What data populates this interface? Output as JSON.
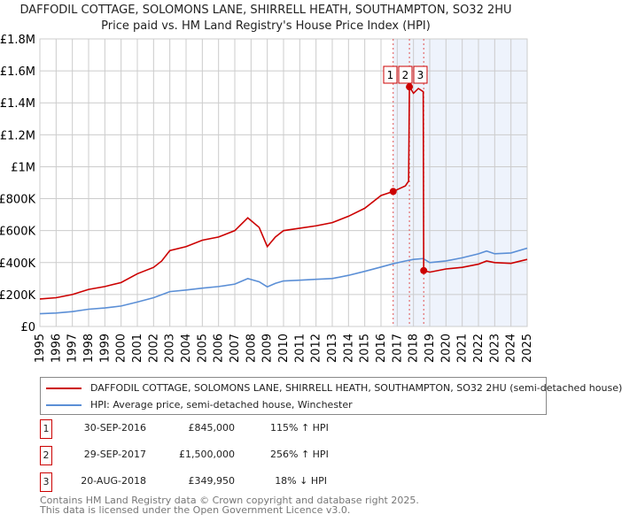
{
  "chart_data": {
    "type": "line",
    "title": "DAFFODIL COTTAGE, SOLOMONS LANE, SHIRRELL HEATH, SOUTHAMPTON, SO32 2HU",
    "subtitle": "Price paid vs. HM Land Registry's House Price Index (HPI)",
    "xlim": [
      1995,
      2025
    ],
    "ylim": [
      0,
      1800000
    ],
    "x_ticks": [
      "1995",
      "1996",
      "1997",
      "1998",
      "1999",
      "2000",
      "2001",
      "2002",
      "2003",
      "2004",
      "2005",
      "2006",
      "2007",
      "2008",
      "2009",
      "2010",
      "2011",
      "2012",
      "2013",
      "2014",
      "2015",
      "2016",
      "2017",
      "2018",
      "2019",
      "2020",
      "2021",
      "2022",
      "2023",
      "2024",
      "2025"
    ],
    "y_ticks": [
      {
        "v": 0,
        "label": "£0"
      },
      {
        "v": 200000,
        "label": "£200K"
      },
      {
        "v": 400000,
        "label": "£400K"
      },
      {
        "v": 600000,
        "label": "£600K"
      },
      {
        "v": 800000,
        "label": "£800K"
      },
      {
        "v": 1000000,
        "label": "£1M"
      },
      {
        "v": 1200000,
        "label": "£1.2M"
      },
      {
        "v": 1400000,
        "label": "£1.4M"
      },
      {
        "v": 1600000,
        "label": "£1.6M"
      },
      {
        "v": 1800000,
        "label": "£1.8M"
      }
    ],
    "series": [
      {
        "name": "DAFFODIL COTTAGE, SOLOMONS LANE, SHIRRELL HEATH, SOUTHAMPTON, SO32 2HU (semi-detached house)",
        "color": "#cc0000",
        "x": [
          1995,
          1996,
          1997,
          1998,
          1999,
          2000,
          2001,
          2002,
          2002.5,
          2003,
          2004,
          2005,
          2006,
          2007,
          2007.8,
          2008.5,
          2009,
          2009.5,
          2010,
          2011,
          2012,
          2013,
          2014,
          2015,
          2016,
          2016.75,
          2017.5,
          2017.7,
          2017.75,
          2018,
          2018.3,
          2018.6,
          2018.63,
          2019,
          2020,
          2021,
          2022,
          2022.5,
          2023,
          2024,
          2025
        ],
        "y": [
          172000,
          180000,
          200000,
          232000,
          250000,
          275000,
          330000,
          370000,
          410000,
          475000,
          500000,
          540000,
          560000,
          600000,
          680000,
          620000,
          500000,
          560000,
          600000,
          615000,
          630000,
          650000,
          690000,
          740000,
          820000,
          845000,
          880000,
          910000,
          1500000,
          1460000,
          1490000,
          1470000,
          349950,
          340000,
          360000,
          370000,
          390000,
          410000,
          400000,
          395000,
          420000
        ]
      },
      {
        "name": "HPI: Average price, semi-detached house, Winchester",
        "color": "#5b8fd6",
        "x": [
          1995,
          1996,
          1997,
          1998,
          1999,
          2000,
          2001,
          2002,
          2003,
          2004,
          2005,
          2006,
          2007,
          2007.8,
          2008.5,
          2009,
          2009.5,
          2010,
          2011,
          2012,
          2013,
          2014,
          2015,
          2016,
          2016.75,
          2017.5,
          2018,
          2018.6,
          2019,
          2020,
          2021,
          2022,
          2022.5,
          2023,
          2024,
          2025
        ],
        "y": [
          80000,
          84000,
          93000,
          108000,
          116000,
          128000,
          153000,
          180000,
          218000,
          228000,
          240000,
          250000,
          265000,
          300000,
          280000,
          248000,
          270000,
          285000,
          290000,
          295000,
          300000,
          320000,
          345000,
          372000,
          393000,
          410000,
          420000,
          425000,
          400000,
          410000,
          430000,
          455000,
          472000,
          455000,
          460000,
          490000
        ]
      }
    ],
    "sales": [
      {
        "n": "1",
        "x": 2016.75,
        "y": 845000,
        "date": "30-SEP-2016",
        "price": "£845,000",
        "hpi": "115% ↑ HPI"
      },
      {
        "n": "2",
        "x": 2017.75,
        "y": 1500000,
        "date": "29-SEP-2017",
        "price": "£1,500,000",
        "hpi": "256% ↑ HPI"
      },
      {
        "n": "3",
        "x": 2018.63,
        "y": 349950,
        "date": "20-AUG-2018",
        "price": "£349,950",
        "hpi": "18% ↓ HPI"
      }
    ],
    "shade_from": 2016.75,
    "legend": {
      "red": "DAFFODIL COTTAGE, SOLOMONS LANE, SHIRRELL HEATH, SOUTHAMPTON, SO32 2HU (semi-detached house)",
      "blue": "HPI: Average price, semi-detached house, Winchester"
    }
  },
  "footer": {
    "line1": "Contains HM Land Registry data © Crown copyright and database right 2025.",
    "line2": "This data is licensed under the Open Government Licence v3.0."
  }
}
